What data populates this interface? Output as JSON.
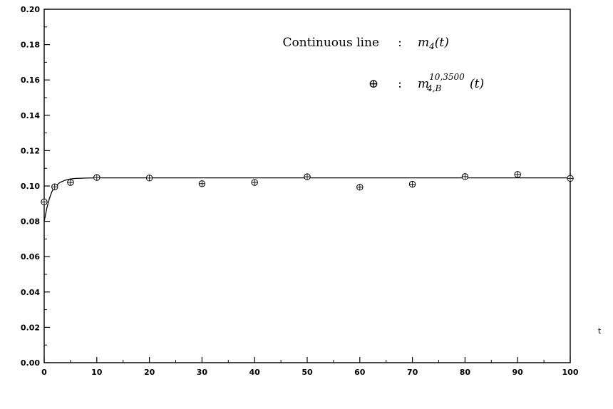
{
  "chart_data": {
    "type": "scatter",
    "xlabel": "t",
    "ylabel": "",
    "xlim": [
      0,
      100
    ],
    "ylim": [
      0,
      0.2
    ],
    "x_ticks": [
      "0",
      "10",
      "20",
      "30",
      "40",
      "50",
      "60",
      "70",
      "80",
      "90",
      "100"
    ],
    "y_ticks": [
      "0.00",
      "0.02",
      "0.04",
      "0.06",
      "0.08",
      "0.10",
      "0.12",
      "0.14",
      "0.16",
      "0.18",
      "0.20"
    ],
    "grid": false,
    "legend_placement": "top-right",
    "legend": {
      "line_label": "Continuous line",
      "line_sep": ":",
      "line_symbol": "m",
      "line_symbol_sub": "4",
      "line_symbol_arg": "(t)",
      "marker_glyph": "⊕",
      "marker_sep": ":",
      "marker_symbol": "m",
      "marker_symbol_sup": "10,3500",
      "marker_symbol_sub": "4,B",
      "marker_symbol_arg": "(t)"
    },
    "series": [
      {
        "kind": "line",
        "x": [
          0,
          0.5,
          1,
          1.5,
          2,
          3,
          4,
          5,
          6,
          8,
          10,
          15,
          20,
          30,
          40,
          50,
          60,
          70,
          80,
          90,
          100
        ],
        "y": [
          0.08,
          0.0875,
          0.093,
          0.097,
          0.0995,
          0.102,
          0.1033,
          0.104,
          0.1043,
          0.1045,
          0.1046,
          0.1046,
          0.1046,
          0.1046,
          0.1046,
          0.1046,
          0.1046,
          0.1046,
          0.1046,
          0.1046,
          0.1046
        ]
      },
      {
        "kind": "scatter",
        "marker": "circle-plus",
        "x": [
          0,
          2,
          5,
          10,
          20,
          30,
          40,
          50,
          60,
          70,
          80,
          90,
          100
        ],
        "y": [
          0.091,
          0.0995,
          0.102,
          0.1048,
          0.1045,
          0.1013,
          0.102,
          0.1052,
          0.0993,
          0.101,
          0.1053,
          0.1065,
          0.1043
        ]
      }
    ]
  }
}
